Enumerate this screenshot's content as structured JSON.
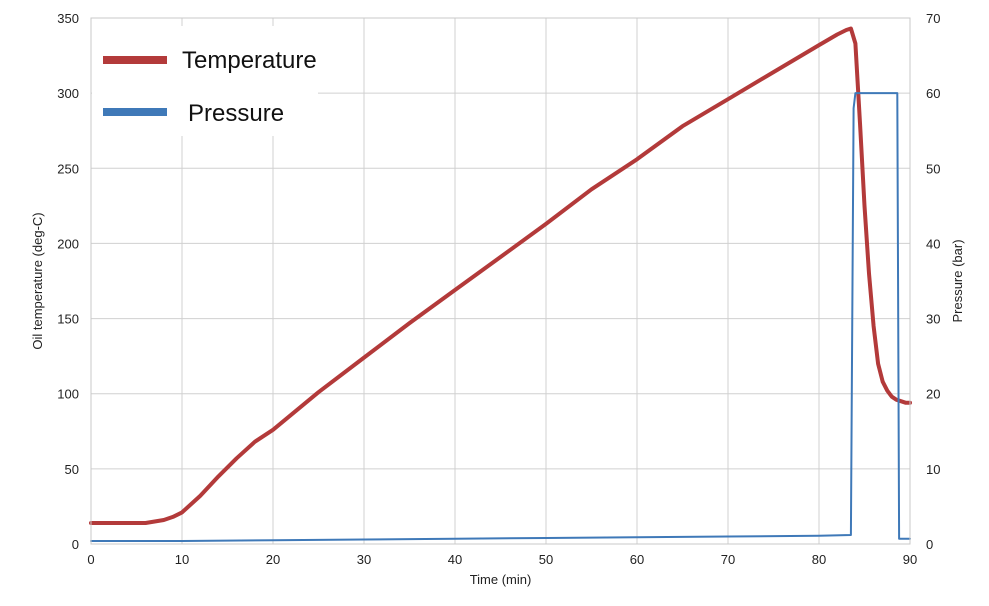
{
  "chart_data": {
    "type": "line",
    "xlabel": "Time (min)",
    "ylabel": "Oil temperature (deg-C)",
    "y2label": "Pressure (bar)",
    "xlim": [
      0,
      90
    ],
    "ylim": [
      0,
      350
    ],
    "y2lim": [
      0,
      70
    ],
    "xticks": [
      "0",
      "10",
      "20",
      "30",
      "40",
      "50",
      "60",
      "70",
      "80",
      "90"
    ],
    "yticks": [
      "0",
      "50",
      "100",
      "150",
      "200",
      "250",
      "300",
      "350"
    ],
    "y2ticks": [
      "0",
      "10",
      "20",
      "30",
      "40",
      "50",
      "60",
      "70"
    ],
    "grid": true,
    "legend_position": "top-left",
    "series": [
      {
        "name": "Temperature",
        "axis": "left",
        "color": "#b33a3a",
        "x": [
          0,
          2,
          4,
          6,
          7,
          8,
          9,
          10,
          12,
          14,
          16,
          18,
          20,
          25,
          30,
          35,
          40,
          45,
          50,
          55,
          60,
          65,
          70,
          75,
          80,
          82,
          83,
          83.5,
          84,
          84.5,
          85,
          85.5,
          86,
          86.5,
          87,
          87.5,
          88,
          88.5,
          89,
          89.5,
          90
        ],
        "values": [
          14,
          14,
          14,
          14,
          15,
          16,
          18,
          21,
          32,
          45,
          57,
          68,
          76,
          101,
          124,
          147,
          169,
          191,
          213,
          236,
          256,
          278,
          296,
          314,
          332,
          339,
          342,
          343,
          333,
          280,
          225,
          180,
          145,
          120,
          108,
          102,
          98,
          96,
          95,
          94,
          94
        ]
      },
      {
        "name": "Pressure",
        "axis": "right",
        "color": "#3f79b8",
        "x": [
          0,
          10,
          20,
          30,
          40,
          50,
          60,
          70,
          80,
          83.5,
          83.8,
          84,
          86,
          88,
          88.6,
          88.8,
          89,
          90
        ],
        "values": [
          0.4,
          0.4,
          0.5,
          0.6,
          0.7,
          0.8,
          0.9,
          1.0,
          1.1,
          1.2,
          58,
          60,
          60,
          60,
          60,
          0.7,
          0.7,
          0.7
        ]
      }
    ]
  }
}
